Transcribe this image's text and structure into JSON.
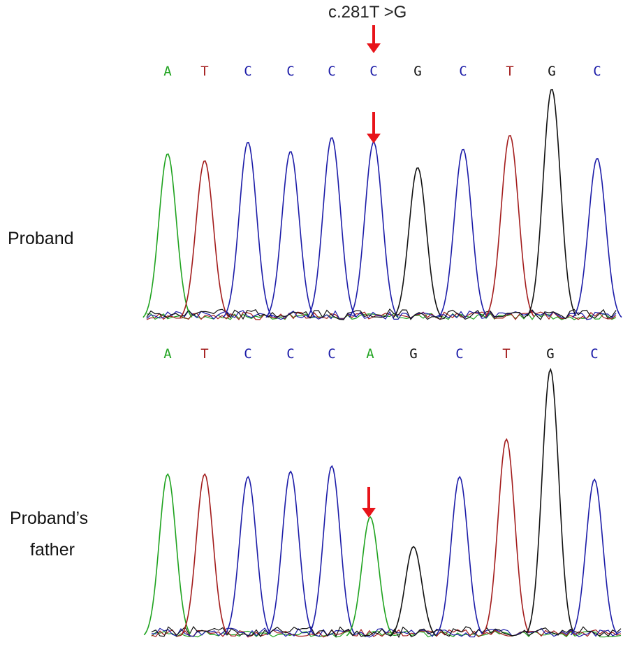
{
  "mutation_label": "c.281T >G",
  "colors": {
    "A": "#1fa31f",
    "T": "#a31c1c",
    "C": "#1c1ca8",
    "G": "#111111",
    "arrow": "#e8141a"
  },
  "tracks": [
    {
      "label_lines": [
        "Proband"
      ],
      "bases": [
        "A",
        "T",
        "C",
        "C",
        "C",
        "C",
        "G",
        "C",
        "T",
        "G",
        "C"
      ],
      "peak_heights": [
        0.72,
        0.69,
        0.77,
        0.73,
        0.79,
        0.77,
        0.66,
        0.74,
        0.8,
        1.0,
        0.7
      ],
      "arrow_index": 5
    },
    {
      "label_lines": [
        "Proband’s",
        "father"
      ],
      "bases": [
        "A",
        "T",
        "C",
        "C",
        "C",
        "A",
        "G",
        "C",
        "T",
        "G",
        "C"
      ],
      "peak_heights": [
        0.61,
        0.61,
        0.6,
        0.62,
        0.64,
        0.45,
        0.34,
        0.6,
        0.74,
        1.0,
        0.59
      ],
      "arrow_index": 5
    }
  ]
}
